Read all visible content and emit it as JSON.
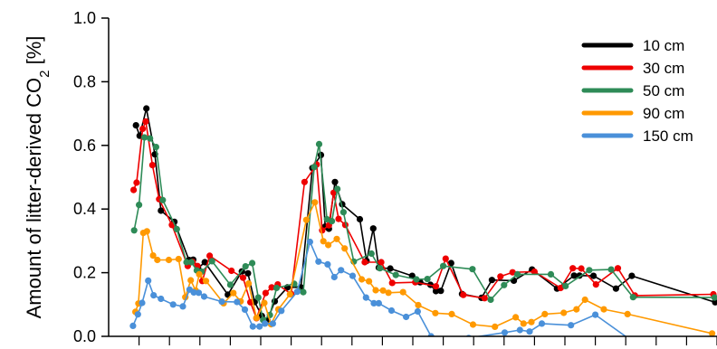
{
  "chart_data": {
    "type": "line",
    "ylabel": {
      "prefix": "Amount of litter-derived CO",
      "sub": "2",
      "suffix": " [%]"
    },
    "xlabel": "",
    "ylim": [
      0,
      1.0
    ],
    "xlim": [
      0,
      100
    ],
    "yticks": [
      "0.0",
      "0.2",
      "0.4",
      "0.6",
      "0.8",
      "1.0"
    ],
    "ytick_values": [
      0,
      0.2,
      0.4,
      0.6,
      0.8,
      1.0
    ],
    "xticks": [
      5,
      10,
      15,
      20,
      25,
      30,
      35,
      40,
      45,
      50,
      55,
      60,
      65,
      70,
      75,
      80,
      85,
      90,
      95,
      100
    ],
    "grid": false,
    "legend_position": "top-right",
    "series": [
      {
        "name": "10 cm",
        "color": "#000000",
        "x": [
          4.5,
          5.1,
          6.2,
          7.6,
          8.6,
          10.8,
          13.2,
          13.9,
          14.7,
          15.8,
          19.6,
          21.9,
          22.9,
          24.0,
          25.2,
          26.1,
          27.3,
          29.4,
          31.6,
          33.5,
          34.9,
          35.6,
          36.2,
          37.2,
          38.4,
          41.3,
          42.4,
          43.5,
          44.4,
          46.3,
          49.9,
          51.2,
          52.9,
          53.8,
          54.6,
          56.3,
          58.1,
          61.3,
          63.0,
          66.6,
          69.6,
          73.7,
          76.5,
          77.4,
          79.7,
          83.4,
          86.0,
          99.7
        ],
        "y": [
          0.663,
          0.63,
          0.716,
          0.572,
          0.395,
          0.36,
          0.24,
          0.241,
          0.214,
          0.233,
          0.131,
          0.204,
          0.198,
          0.108,
          0.064,
          0.05,
          0.11,
          0.154,
          0.154,
          0.529,
          0.57,
          0.345,
          0.338,
          0.485,
          0.415,
          0.368,
          0.237,
          0.339,
          0.216,
          0.213,
          0.19,
          0.17,
          0.162,
          0.142,
          0.143,
          0.23,
          0.133,
          0.121,
          0.177,
          0.175,
          0.21,
          0.15,
          0.191,
          0.191,
          0.19,
          0.15,
          0.19,
          0.107
        ]
      },
      {
        "name": "30 cm",
        "color": "#ee0000",
        "x": [
          4.1,
          4.6,
          5.6,
          6.1,
          7.2,
          8.3,
          10.4,
          13.0,
          13.8,
          14.6,
          15.4,
          16.6,
          20.2,
          22.1,
          23.3,
          24.3,
          25.8,
          26.8,
          27.8,
          30.0,
          32.2,
          34.2,
          35.1,
          36.2,
          37.0,
          37.8,
          38.9,
          42.1,
          44.8,
          46.6,
          50.4,
          53.8,
          55.4,
          58.3,
          61.8,
          64.4,
          66.4,
          70.0,
          74.3,
          76.3,
          77.7,
          80.1,
          83.7,
          86.5,
          99.4
        ],
        "y": [
          0.46,
          0.483,
          0.652,
          0.675,
          0.538,
          0.431,
          0.35,
          0.221,
          0.234,
          0.221,
          0.174,
          0.253,
          0.206,
          0.184,
          0.107,
          0.057,
          0.136,
          0.154,
          0.163,
          0.133,
          0.485,
          0.54,
          0.333,
          0.349,
          0.451,
          0.369,
          0.35,
          0.233,
          0.233,
          0.168,
          0.17,
          0.157,
          0.244,
          0.13,
          0.12,
          0.188,
          0.201,
          0.203,
          0.152,
          0.214,
          0.213,
          0.163,
          0.214,
          0.128,
          0.132
        ]
      },
      {
        "name": "50 cm",
        "color": "#2e8b57",
        "x": [
          4.2,
          5.0,
          5.9,
          6.8,
          7.8,
          8.9,
          11.2,
          12.8,
          13.6,
          14.5,
          15.3,
          17.0,
          20.0,
          22.5,
          23.6,
          24.6,
          25.4,
          26.5,
          27.6,
          30.5,
          32.0,
          33.8,
          34.6,
          35.9,
          36.7,
          37.6,
          38.6,
          40.3,
          43.2,
          44.6,
          47.2,
          50.6,
          52.4,
          55.0,
          59.8,
          62.8,
          65.0,
          67.2,
          72.7,
          75.1,
          79.0,
          82.6,
          86.2,
          99.6
        ],
        "y": [
          0.333,
          0.413,
          0.625,
          0.622,
          0.595,
          0.428,
          0.337,
          0.233,
          0.233,
          0.207,
          0.203,
          0.236,
          0.162,
          0.22,
          0.23,
          0.122,
          0.051,
          0.067,
          0.152,
          0.165,
          0.139,
          0.532,
          0.604,
          0.368,
          0.362,
          0.463,
          0.39,
          0.235,
          0.26,
          0.214,
          0.193,
          0.179,
          0.18,
          0.221,
          0.211,
          0.115,
          0.161,
          0.195,
          0.195,
          0.158,
          0.208,
          0.21,
          0.123,
          0.122
        ]
      },
      {
        "name": "90 cm",
        "color": "#ff9900",
        "x": [
          4.4,
          4.9,
          5.7,
          6.3,
          7.3,
          8.0,
          9.9,
          11.5,
          12.6,
          13.5,
          14.3,
          14.9,
          16.0,
          18.9,
          20.5,
          21.7,
          23.0,
          24.3,
          25.6,
          26.7,
          27.9,
          29.8,
          32.5,
          33.9,
          35.3,
          36.1,
          37.5,
          38.8,
          41.6,
          42.8,
          43.9,
          45.1,
          46.0,
          48.4,
          50.9,
          53.7,
          56.4,
          59.9,
          63.5,
          66.9,
          68.2,
          69.5,
          71.7,
          74.8,
          76.9,
          78.3,
          81.4,
          85.3,
          99.2
        ],
        "y": [
          0.077,
          0.103,
          0.325,
          0.33,
          0.254,
          0.24,
          0.24,
          0.243,
          0.123,
          0.176,
          0.144,
          0.195,
          0.174,
          0.104,
          0.136,
          0.11,
          0.166,
          0.058,
          0.105,
          0.038,
          0.085,
          0.132,
          0.366,
          0.421,
          0.299,
          0.287,
          0.306,
          0.276,
          0.179,
          0.173,
          0.145,
          0.144,
          0.137,
          0.139,
          0.098,
          0.073,
          0.07,
          0.037,
          0.03,
          0.06,
          0.04,
          0.045,
          0.07,
          0.074,
          0.085,
          0.115,
          0.085,
          0.07,
          0.009
        ]
      },
      {
        "name": "150 cm",
        "color": "#4a90d9",
        "x": [
          4.0,
          4.8,
          5.5,
          6.5,
          7.4,
          8.6,
          10.6,
          12.2,
          13.3,
          14.0,
          14.8,
          15.7,
          18.6,
          21.1,
          22.4,
          23.7,
          24.8,
          25.7,
          27.0,
          28.4,
          31.0,
          33.1,
          34.5,
          36.0,
          37.1,
          38.2,
          40.1,
          42.3,
          43.6,
          44.4,
          46.5,
          48.9,
          50.8,
          53.0,
          55.3,
          59.2,
          65.1,
          67.6,
          69.2,
          71.2,
          76.0,
          80.0,
          85.7,
          88.4,
          99.1
        ],
        "y": [
          0.033,
          0.069,
          0.105,
          0.175,
          0.129,
          0.118,
          0.1,
          0.094,
          0.147,
          0.138,
          0.137,
          0.125,
          0.109,
          0.108,
          0.084,
          0.031,
          0.031,
          0.04,
          0.04,
          0.08,
          0.14,
          0.297,
          0.235,
          0.226,
          0.186,
          0.208,
          0.19,
          0.122,
          0.104,
          0.104,
          0.081,
          0.061,
          0.078,
          0.0,
          -0.02,
          -0.005,
          0.012,
          0.02,
          0.015,
          0.04,
          0.035,
          0.068,
          -0.01,
          -0.01,
          -0.01
        ]
      }
    ]
  }
}
